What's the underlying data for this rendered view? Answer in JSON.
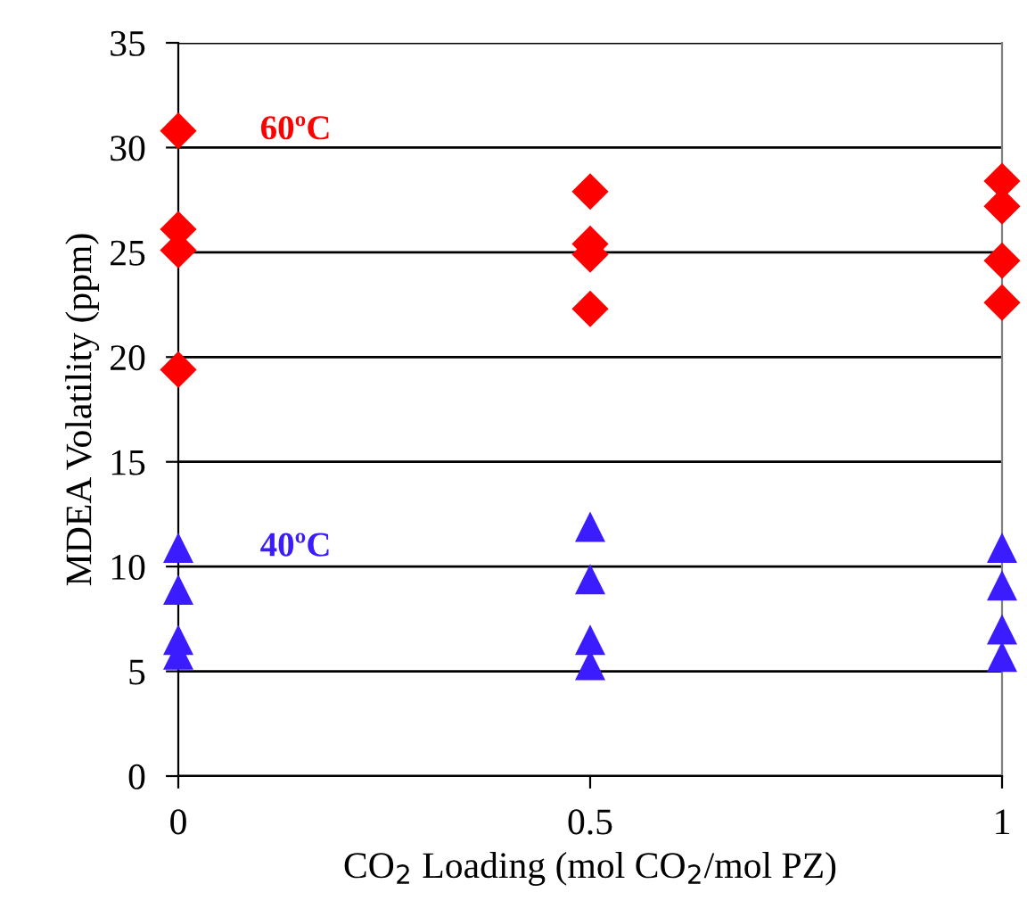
{
  "chart_data": {
    "type": "scatter",
    "xlabel": "CO$_{2}$ Loading (mol CO$_{2}$/mol PZ)",
    "ylabel": "MDEA Volatility (ppm)",
    "xlim": [
      0,
      1
    ],
    "xticks": [
      0,
      0.5,
      1
    ],
    "ylim": [
      0,
      35
    ],
    "yticks": [
      0,
      5,
      10,
      15,
      20,
      25,
      30,
      35
    ],
    "grid": "y",
    "legend": false,
    "series": [
      {
        "name": "60ºC",
        "color": "#ff0000",
        "marker": "diamond",
        "x": [
          0,
          0,
          0,
          0,
          0.5,
          0.5,
          0.5,
          0.5,
          1,
          1,
          1,
          1
        ],
        "values": [
          30.8,
          26.1,
          25.1,
          19.4,
          27.9,
          25.4,
          24.9,
          22.3,
          28.4,
          27.2,
          24.6,
          22.6
        ]
      },
      {
        "name": "40ºC",
        "color": "#3a1cff",
        "marker": "triangle",
        "x": [
          0,
          0,
          0,
          0,
          0.5,
          0.5,
          0.5,
          0.5,
          1,
          1,
          1,
          1
        ],
        "values": [
          10.9,
          8.9,
          6.5,
          5.8,
          11.9,
          9.4,
          6.5,
          5.3,
          10.9,
          9.1,
          7.0,
          5.7
        ]
      }
    ]
  }
}
